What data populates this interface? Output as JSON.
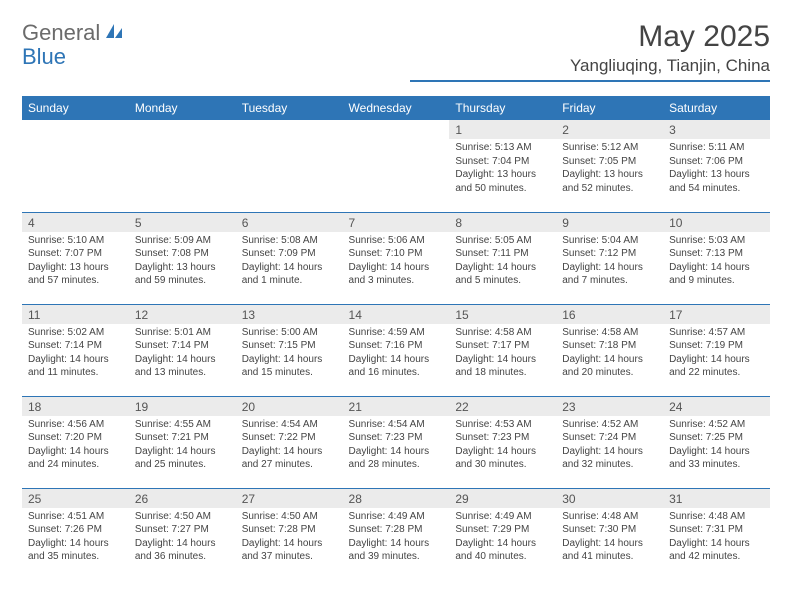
{
  "brand": {
    "part1": "General",
    "part2": "Blue"
  },
  "colors": {
    "accent": "#2e75b6",
    "header_bg": "#2e75b6",
    "header_text": "#ffffff",
    "daynum_bg": "#ebebeb",
    "text": "#444444",
    "logo_gray": "#6b6b6b"
  },
  "title": "May 2025",
  "location": "Yangliuqing, Tianjin, China",
  "weekdays": [
    "Sunday",
    "Monday",
    "Tuesday",
    "Wednesday",
    "Thursday",
    "Friday",
    "Saturday"
  ],
  "weeks": [
    [
      null,
      null,
      null,
      null,
      {
        "n": "1",
        "sr": "Sunrise: 5:13 AM",
        "ss": "Sunset: 7:04 PM",
        "dl": "Daylight: 13 hours and 50 minutes."
      },
      {
        "n": "2",
        "sr": "Sunrise: 5:12 AM",
        "ss": "Sunset: 7:05 PM",
        "dl": "Daylight: 13 hours and 52 minutes."
      },
      {
        "n": "3",
        "sr": "Sunrise: 5:11 AM",
        "ss": "Sunset: 7:06 PM",
        "dl": "Daylight: 13 hours and 54 minutes."
      }
    ],
    [
      {
        "n": "4",
        "sr": "Sunrise: 5:10 AM",
        "ss": "Sunset: 7:07 PM",
        "dl": "Daylight: 13 hours and 57 minutes."
      },
      {
        "n": "5",
        "sr": "Sunrise: 5:09 AM",
        "ss": "Sunset: 7:08 PM",
        "dl": "Daylight: 13 hours and 59 minutes."
      },
      {
        "n": "6",
        "sr": "Sunrise: 5:08 AM",
        "ss": "Sunset: 7:09 PM",
        "dl": "Daylight: 14 hours and 1 minute."
      },
      {
        "n": "7",
        "sr": "Sunrise: 5:06 AM",
        "ss": "Sunset: 7:10 PM",
        "dl": "Daylight: 14 hours and 3 minutes."
      },
      {
        "n": "8",
        "sr": "Sunrise: 5:05 AM",
        "ss": "Sunset: 7:11 PM",
        "dl": "Daylight: 14 hours and 5 minutes."
      },
      {
        "n": "9",
        "sr": "Sunrise: 5:04 AM",
        "ss": "Sunset: 7:12 PM",
        "dl": "Daylight: 14 hours and 7 minutes."
      },
      {
        "n": "10",
        "sr": "Sunrise: 5:03 AM",
        "ss": "Sunset: 7:13 PM",
        "dl": "Daylight: 14 hours and 9 minutes."
      }
    ],
    [
      {
        "n": "11",
        "sr": "Sunrise: 5:02 AM",
        "ss": "Sunset: 7:14 PM",
        "dl": "Daylight: 14 hours and 11 minutes."
      },
      {
        "n": "12",
        "sr": "Sunrise: 5:01 AM",
        "ss": "Sunset: 7:14 PM",
        "dl": "Daylight: 14 hours and 13 minutes."
      },
      {
        "n": "13",
        "sr": "Sunrise: 5:00 AM",
        "ss": "Sunset: 7:15 PM",
        "dl": "Daylight: 14 hours and 15 minutes."
      },
      {
        "n": "14",
        "sr": "Sunrise: 4:59 AM",
        "ss": "Sunset: 7:16 PM",
        "dl": "Daylight: 14 hours and 16 minutes."
      },
      {
        "n": "15",
        "sr": "Sunrise: 4:58 AM",
        "ss": "Sunset: 7:17 PM",
        "dl": "Daylight: 14 hours and 18 minutes."
      },
      {
        "n": "16",
        "sr": "Sunrise: 4:58 AM",
        "ss": "Sunset: 7:18 PM",
        "dl": "Daylight: 14 hours and 20 minutes."
      },
      {
        "n": "17",
        "sr": "Sunrise: 4:57 AM",
        "ss": "Sunset: 7:19 PM",
        "dl": "Daylight: 14 hours and 22 minutes."
      }
    ],
    [
      {
        "n": "18",
        "sr": "Sunrise: 4:56 AM",
        "ss": "Sunset: 7:20 PM",
        "dl": "Daylight: 14 hours and 24 minutes."
      },
      {
        "n": "19",
        "sr": "Sunrise: 4:55 AM",
        "ss": "Sunset: 7:21 PM",
        "dl": "Daylight: 14 hours and 25 minutes."
      },
      {
        "n": "20",
        "sr": "Sunrise: 4:54 AM",
        "ss": "Sunset: 7:22 PM",
        "dl": "Daylight: 14 hours and 27 minutes."
      },
      {
        "n": "21",
        "sr": "Sunrise: 4:54 AM",
        "ss": "Sunset: 7:23 PM",
        "dl": "Daylight: 14 hours and 28 minutes."
      },
      {
        "n": "22",
        "sr": "Sunrise: 4:53 AM",
        "ss": "Sunset: 7:23 PM",
        "dl": "Daylight: 14 hours and 30 minutes."
      },
      {
        "n": "23",
        "sr": "Sunrise: 4:52 AM",
        "ss": "Sunset: 7:24 PM",
        "dl": "Daylight: 14 hours and 32 minutes."
      },
      {
        "n": "24",
        "sr": "Sunrise: 4:52 AM",
        "ss": "Sunset: 7:25 PM",
        "dl": "Daylight: 14 hours and 33 minutes."
      }
    ],
    [
      {
        "n": "25",
        "sr": "Sunrise: 4:51 AM",
        "ss": "Sunset: 7:26 PM",
        "dl": "Daylight: 14 hours and 35 minutes."
      },
      {
        "n": "26",
        "sr": "Sunrise: 4:50 AM",
        "ss": "Sunset: 7:27 PM",
        "dl": "Daylight: 14 hours and 36 minutes."
      },
      {
        "n": "27",
        "sr": "Sunrise: 4:50 AM",
        "ss": "Sunset: 7:28 PM",
        "dl": "Daylight: 14 hours and 37 minutes."
      },
      {
        "n": "28",
        "sr": "Sunrise: 4:49 AM",
        "ss": "Sunset: 7:28 PM",
        "dl": "Daylight: 14 hours and 39 minutes."
      },
      {
        "n": "29",
        "sr": "Sunrise: 4:49 AM",
        "ss": "Sunset: 7:29 PM",
        "dl": "Daylight: 14 hours and 40 minutes."
      },
      {
        "n": "30",
        "sr": "Sunrise: 4:48 AM",
        "ss": "Sunset: 7:30 PM",
        "dl": "Daylight: 14 hours and 41 minutes."
      },
      {
        "n": "31",
        "sr": "Sunrise: 4:48 AM",
        "ss": "Sunset: 7:31 PM",
        "dl": "Daylight: 14 hours and 42 minutes."
      }
    ]
  ]
}
